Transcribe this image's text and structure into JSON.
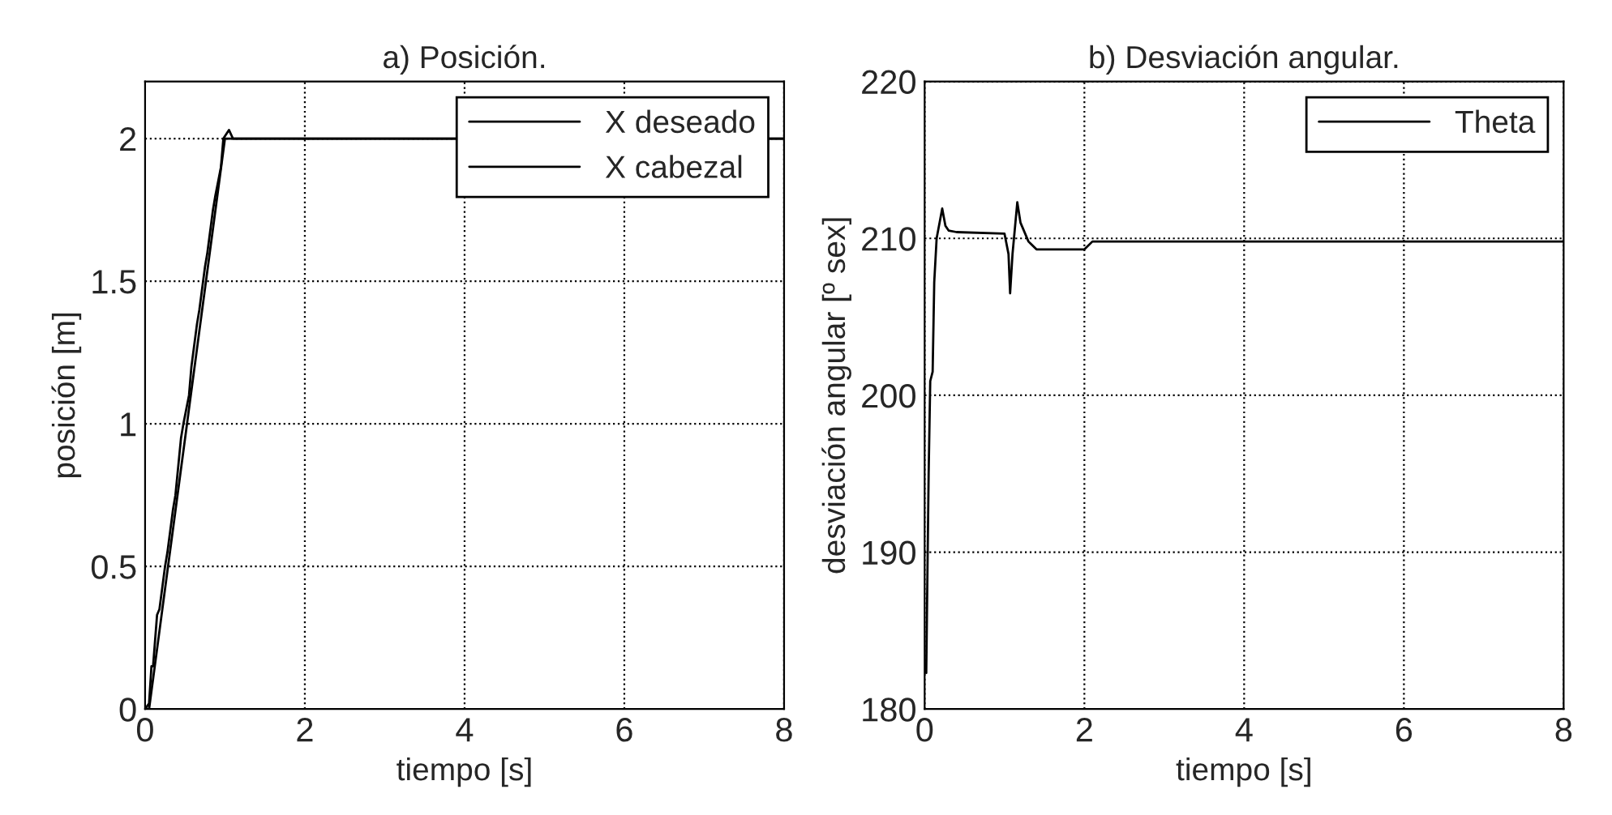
{
  "chart_data": [
    {
      "type": "line",
      "title": "a) Posición.",
      "xlabel": "tiempo [s]",
      "ylabel": "posición [m]",
      "xlim": [
        0,
        8
      ],
      "xticks": [
        0,
        2,
        4,
        6,
        8
      ],
      "ylim": [
        0,
        2.2
      ],
      "yticks": [
        0,
        0.5,
        1,
        1.5,
        2
      ],
      "grid": true,
      "legend": "top right",
      "series": [
        {
          "name": "X deseado",
          "color": "#000000",
          "x": [
            0,
            0.05,
            1.0,
            8
          ],
          "values": [
            0,
            0,
            2,
            2
          ]
        },
        {
          "name": "X cabezal",
          "color": "#000000",
          "x": [
            0,
            0.05,
            0.08,
            0.1,
            0.15,
            0.18,
            0.25,
            0.28,
            0.35,
            0.38,
            0.45,
            0.48,
            0.55,
            0.58,
            0.65,
            0.68,
            0.75,
            0.78,
            0.85,
            0.88,
            0.95,
            0.98,
            1.05,
            1.1,
            1.2,
            8
          ],
          "values": [
            0,
            0.02,
            0.15,
            0.15,
            0.33,
            0.35,
            0.5,
            0.55,
            0.7,
            0.75,
            0.95,
            1.0,
            1.1,
            1.2,
            1.35,
            1.4,
            1.55,
            1.6,
            1.75,
            1.8,
            1.9,
            2.0,
            2.03,
            2.0,
            2.0,
            2.0
          ]
        }
      ]
    },
    {
      "type": "line",
      "title": "b) Desviación angular.",
      "xlabel": "tiempo [s]",
      "ylabel": "desviación angular [º sex]",
      "xlim": [
        0,
        8
      ],
      "xticks": [
        0,
        2,
        4,
        6,
        8
      ],
      "ylim": [
        180,
        220
      ],
      "yticks": [
        180,
        190,
        200,
        210,
        220
      ],
      "grid": true,
      "legend": "top right",
      "series": [
        {
          "name": "Theta",
          "color": "#000000",
          "x": [
            0.02,
            0.05,
            0.07,
            0.1,
            0.12,
            0.15,
            0.22,
            0.26,
            0.3,
            0.4,
            1.0,
            1.05,
            1.07,
            1.1,
            1.16,
            1.2,
            1.3,
            1.4,
            2.0,
            2.1,
            8
          ],
          "values": [
            182.3,
            195,
            200.9,
            201.5,
            207.2,
            210,
            211.9,
            210.8,
            210.5,
            210.4,
            210.3,
            209,
            206.5,
            209,
            212.3,
            211,
            209.8,
            209.3,
            209.3,
            209.8,
            209.8
          ]
        }
      ]
    }
  ]
}
